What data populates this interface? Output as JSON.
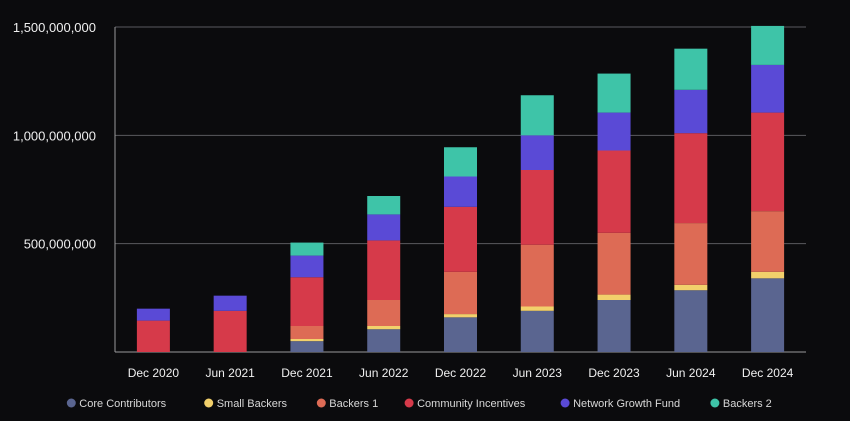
{
  "colors": {
    "background": "#0b0b0d",
    "grid": "#5a5a5e",
    "axis": "#9a9a9a",
    "text": "#f0f0f0"
  },
  "chart_data": {
    "type": "bar",
    "stacked": true,
    "title": "",
    "xlabel": "",
    "ylabel": "",
    "ylim": [
      0,
      1500000000
    ],
    "y_ticks": [
      {
        "value": 500000000,
        "label": "500,000,000"
      },
      {
        "value": 1000000000,
        "label": "1,000,000,000"
      },
      {
        "value": 1500000000,
        "label": "1,500,000,000"
      }
    ],
    "grid": true,
    "legend_position": "bottom",
    "categories": [
      "Dec 2020",
      "Jun 2021",
      "Dec 2021",
      "Jun 2022",
      "Dec 2022",
      "Jun 2023",
      "Dec 2023",
      "Jun 2024",
      "Dec 2024"
    ],
    "series": [
      {
        "name": "Core Contributors",
        "color": "#5a6590",
        "values": [
          0,
          0,
          50000000,
          105000000,
          160000000,
          190000000,
          240000000,
          285000000,
          340000000
        ]
      },
      {
        "name": "Small Backers",
        "color": "#f2d06b",
        "values": [
          0,
          0,
          10000000,
          15000000,
          15000000,
          20000000,
          25000000,
          25000000,
          30000000
        ]
      },
      {
        "name": "Backers 1",
        "color": "#dd6b55",
        "values": [
          0,
          0,
          60000000,
          120000000,
          195000000,
          285000000,
          285000000,
          285000000,
          280000000
        ]
      },
      {
        "name": "Community Incentives",
        "color": "#d63a4a",
        "values": [
          145000000,
          190000000,
          225000000,
          275000000,
          300000000,
          345000000,
          380000000,
          415000000,
          455000000
        ]
      },
      {
        "name": "Network Growth Fund",
        "color": "#5a4ad6",
        "values": [
          55000000,
          70000000,
          100000000,
          120000000,
          140000000,
          160000000,
          175000000,
          200000000,
          220000000
        ]
      },
      {
        "name": "Backers 2",
        "color": "#3ec4a8",
        "values": [
          0,
          0,
          60000000,
          85000000,
          135000000,
          185000000,
          180000000,
          190000000,
          180000000
        ]
      }
    ]
  }
}
